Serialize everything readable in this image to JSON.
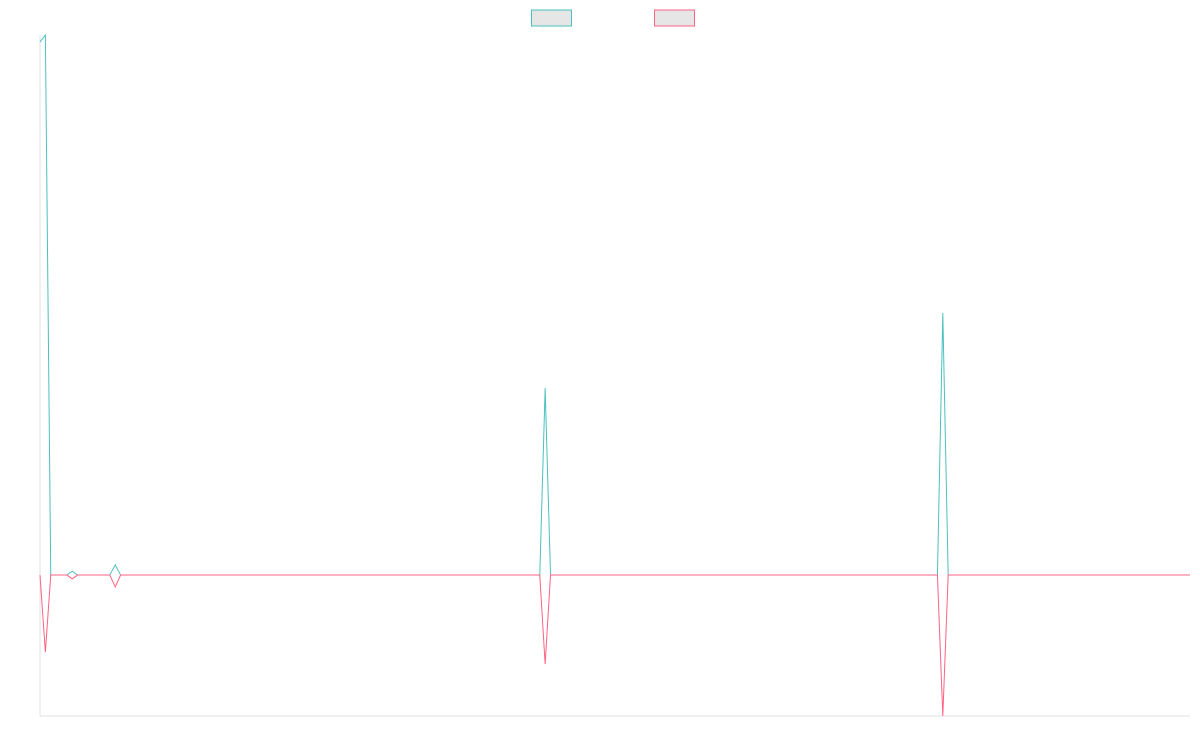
{
  "chart_data": {
    "type": "line",
    "x": [
      0,
      1,
      2,
      5,
      6,
      7,
      13,
      14,
      15,
      93,
      94,
      95,
      167,
      168,
      169,
      214
    ],
    "xlim": [
      0,
      214
    ],
    "ylim": [
      -26.1,
      100
    ],
    "legend": "top",
    "series": [
      {
        "color": "#4bc0c0",
        "values": [
          98.7,
          100,
          0,
          0,
          0.7,
          0,
          0,
          1.9,
          0,
          0,
          34.6,
          0,
          0,
          48.5,
          0,
          0
        ]
      },
      {
        "color": "#ff6384",
        "values": [
          0,
          -14.3,
          0,
          0,
          -0.7,
          0,
          0,
          -2.2,
          0,
          0,
          -16.5,
          0,
          0,
          -26.1,
          0,
          0
        ]
      }
    ]
  }
}
